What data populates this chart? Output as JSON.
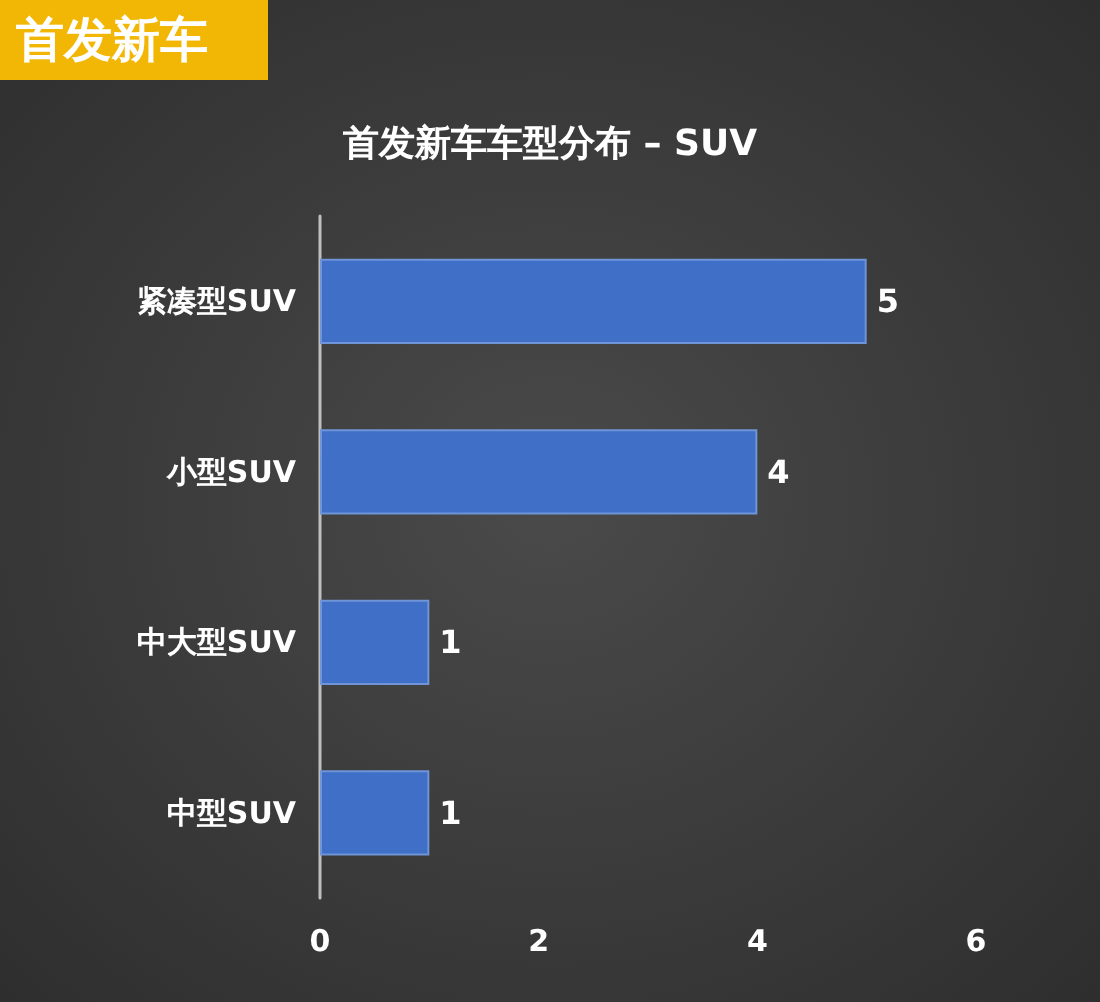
{
  "chart_data": {
    "type": "bar",
    "orientation": "horizontal",
    "title": "首发新车",
    "subtitle": "首发新车车型分布 – SUV",
    "categories": [
      "紧凑型SUV",
      "小型SUV",
      "中大型SUV",
      "中型SUV"
    ],
    "values": [
      5,
      4,
      1,
      1
    ],
    "color": "#3f6fc6",
    "data_labels": true,
    "xlim": [
      0,
      6
    ],
    "xticks": [
      0,
      2,
      4,
      6
    ]
  }
}
